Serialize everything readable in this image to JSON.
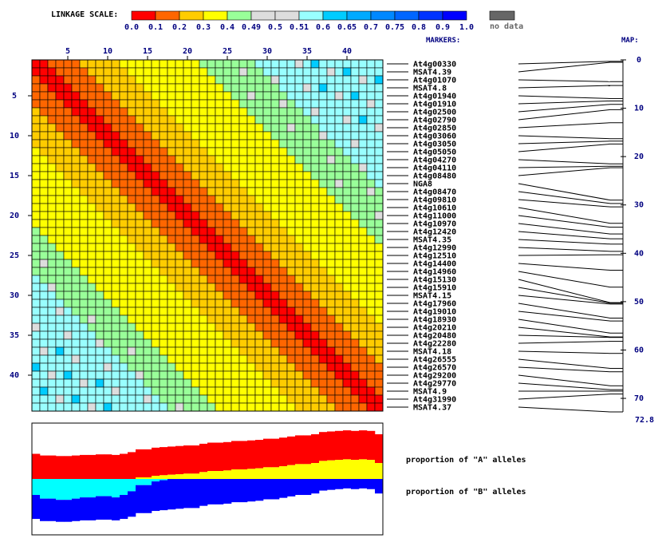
{
  "chart_data": [
    {
      "type": "heatmap",
      "title": "",
      "legend": {
        "label": "LINKAGE SCALE:",
        "ticks": [
          "0.0",
          "0.1",
          "0.2",
          "0.3",
          "0.4",
          "0.49",
          "0.5",
          "0.51",
          "0.6",
          "0.65",
          "0.7",
          "0.75",
          "0.8",
          "0.9",
          "1.0"
        ],
        "colors": [
          "#ff0000",
          "#ff6600",
          "#ffcc00",
          "#ffff00",
          "#99ff99",
          "#dddddd",
          "#dddddd",
          "#99ffff",
          "#00ccff",
          "#00aaff",
          "#0088ff",
          "#0066ff",
          "#0033ff",
          "#0000ff"
        ],
        "nodata_label": "no data",
        "nodata_color": "#666666"
      },
      "colors": {
        "strong": "#ff0000",
        "near": "#ff6600",
        "mid": "#ffcc00",
        "far": "#ffff00",
        "unlinked": "#99ff99",
        "neutral": "#dddddd",
        "distant": "#99ffff",
        "distant_dark": "#00ccff"
      },
      "x_ticks": [
        "5",
        "10",
        "15",
        "20",
        "25",
        "30",
        "35",
        "40"
      ],
      "y_ticks": [
        "5",
        "10",
        "15",
        "20",
        "25",
        "30",
        "35",
        "40"
      ],
      "markers_header": "MARKERS:",
      "markers": [
        "At4g00330",
        "MSAT4.39",
        "At4g01070",
        "MSAT4.8",
        "At4g01940",
        "At4g01910",
        "At4g02500",
        "At4g02790",
        "At4g02850",
        "At4g03060",
        "At4g03050",
        "At4g05050",
        "At4g04270",
        "At4g04110",
        "At4g08480",
        "NGA8",
        "At4g08470",
        "At4g09810",
        "At4g10610",
        "At4g11000",
        "At4g10970",
        "At4g12420",
        "MSAT4.35",
        "At4g12990",
        "At4g12510",
        "At4g14400",
        "At4g14960",
        "At4g15130",
        "At4g15910",
        "MSAT4.15",
        "At4g17960",
        "At4g19010",
        "At4g18930",
        "At4g20210",
        "At4g20480",
        "At4g22280",
        "MSAT4.18",
        "At4g26555",
        "At4g26570",
        "At4g29200",
        "At4g29770",
        "MSAT4.9",
        "At4g31990",
        "MSAT4.37"
      ]
    },
    {
      "type": "line",
      "title": "",
      "map_header": "MAP:",
      "map_ticks": [
        "0",
        "10",
        "20",
        "30",
        "40",
        "50",
        "60",
        "70"
      ],
      "map_end_label": "72.8",
      "ylim": [
        0,
        72.8
      ],
      "positions": [
        0.3,
        0.5,
        4.5,
        5.3,
        8.0,
        8.5,
        9.2,
        10.3,
        13.0,
        16.3,
        16.8,
        17.4,
        21.5,
        22.0,
        22.3,
        29.0,
        29.7,
        30.4,
        33.8,
        34.6,
        36.0,
        37.0,
        38.1,
        39.6,
        40.3,
        43.5,
        47.0,
        50.2,
        50.3,
        50.5,
        53.4,
        54.0,
        56.5,
        57.3,
        57.4,
        58.2,
        60.7,
        63.8,
        64.5,
        67.4,
        68.2,
        68.5,
        69.1,
        72.8
      ]
    },
    {
      "type": "area",
      "title": "",
      "series": [
        {
          "name": "proportion of \"A\" alleles",
          "values": [
            0.45,
            0.42,
            0.42,
            0.41,
            0.41,
            0.42,
            0.43,
            0.43,
            0.44,
            0.44,
            0.43,
            0.45,
            0.48,
            0.53,
            0.53,
            0.56,
            0.57,
            0.58,
            0.59,
            0.6,
            0.6,
            0.63,
            0.65,
            0.65,
            0.66,
            0.68,
            0.68,
            0.69,
            0.7,
            0.72,
            0.72,
            0.74,
            0.76,
            0.78,
            0.78,
            0.8,
            0.84,
            0.85,
            0.86,
            0.87,
            0.86,
            0.87,
            0.86,
            0.8
          ]
        },
        {
          "name": "proportion of \"B\" alleles",
          "values": [
            0.55,
            0.58,
            0.58,
            0.59,
            0.59,
            0.58,
            0.57,
            0.57,
            0.56,
            0.56,
            0.57,
            0.55,
            0.52,
            0.47,
            0.47,
            0.44,
            0.43,
            0.42,
            0.41,
            0.4,
            0.4,
            0.37,
            0.35,
            0.35,
            0.34,
            0.32,
            0.32,
            0.31,
            0.3,
            0.28,
            0.28,
            0.26,
            0.24,
            0.22,
            0.22,
            0.2,
            0.16,
            0.15,
            0.14,
            0.13,
            0.14,
            0.13,
            0.14,
            0.2
          ]
        }
      ],
      "series_labels": [
        "proportion of \"A\" alleles",
        "proportion of \"B\" alleles"
      ],
      "colors": {
        "a_strong": "#ff0000",
        "a_light": "#ffff00",
        "b_light": "#00ffff",
        "b_strong": "#0000ff",
        "axis": "#000000"
      },
      "ylim": [
        0,
        1
      ]
    }
  ]
}
